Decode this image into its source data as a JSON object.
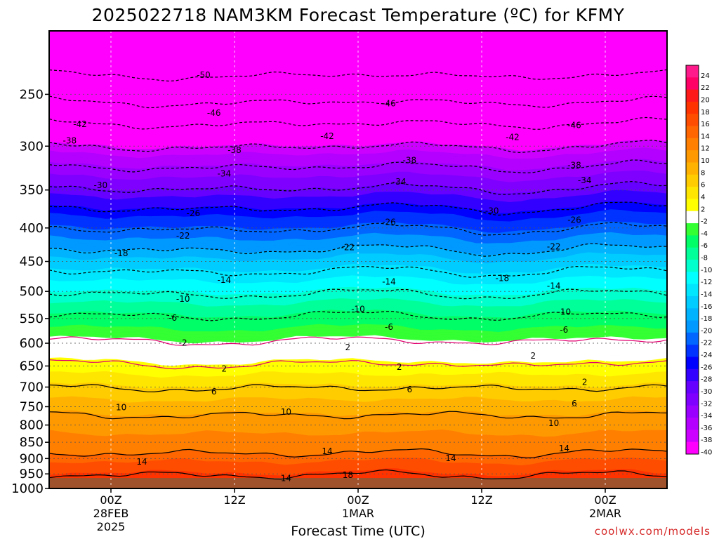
{
  "chart_data": {
    "type": "heatmap",
    "title": "2025022718 NAM3KM Forecast Temperature (ºC) for KFMY",
    "xlabel": "Forecast Time (UTC)",
    "ylabel": "",
    "y_scale": "log",
    "y_reversed": true,
    "ylim": [
      1000,
      200
    ],
    "y_ticks": [
      250,
      300,
      350,
      400,
      450,
      500,
      550,
      600,
      650,
      700,
      750,
      800,
      850,
      900,
      950,
      1000
    ],
    "x_ticks": [
      {
        "hours": 6,
        "label1": "00Z",
        "label2": "28FEB",
        "label3": "2025"
      },
      {
        "hours": 18,
        "label1": "12Z",
        "label2": "",
        "label3": ""
      },
      {
        "hours": 30,
        "label1": "00Z",
        "label2": "1MAR",
        "label3": ""
      },
      {
        "hours": 42,
        "label1": "12Z",
        "label2": "",
        "label3": ""
      },
      {
        "hours": 54,
        "label1": "00Z",
        "label2": "2MAR",
        "label3": ""
      }
    ],
    "xlim_hours": [
      0,
      60
    ],
    "grid": true,
    "colorbar": {
      "position": "right",
      "levels": [
        24,
        22,
        20,
        18,
        16,
        14,
        12,
        10,
        8,
        6,
        4,
        2,
        -2,
        -4,
        -6,
        -8,
        -10,
        -12,
        -14,
        -16,
        -18,
        -20,
        -22,
        -24,
        -26,
        -28,
        -30,
        -32,
        -34,
        -36,
        -38,
        -40
      ],
      "colors": [
        "#ff1a8c",
        "#ff0066",
        "#ff1a1a",
        "#ff3300",
        "#ff4d00",
        "#ff6600",
        "#ff8000",
        "#ff9900",
        "#ffb300",
        "#ffcc00",
        "#ffe600",
        "#ffff00",
        "#ffffff",
        "#33ff33",
        "#00ff66",
        "#00ff99",
        "#00ffcc",
        "#00ffff",
        "#00e6ff",
        "#00ccff",
        "#00b3ff",
        "#0099ff",
        "#0066ff",
        "#0033ff",
        "#0000ff",
        "#3300ff",
        "#6600ff",
        "#8000ff",
        "#9900ff",
        "#b300ff",
        "#cc00ff",
        "#ff00ff"
      ]
    },
    "isotherms": [
      {
        "temp": -50,
        "p": 232
      },
      {
        "temp": -46,
        "p": 255
      },
      {
        "temp": -42,
        "p": 275
      },
      {
        "temp": -38,
        "p": 298
      },
      {
        "temp": -34,
        "p": 320
      },
      {
        "temp": -30,
        "p": 345
      },
      {
        "temp": -26,
        "p": 370
      },
      {
        "temp": -22,
        "p": 398
      },
      {
        "temp": -18,
        "p": 428
      },
      {
        "temp": -14,
        "p": 462
      },
      {
        "temp": -10,
        "p": 500
      },
      {
        "temp": -6,
        "p": 540
      },
      {
        "temp": -2,
        "p": 590
      },
      {
        "temp": 2,
        "p": 640
      },
      {
        "temp": 6,
        "p": 700
      },
      {
        "temp": 10,
        "p": 770
      },
      {
        "temp": 14,
        "p": 880
      },
      {
        "temp": 18,
        "p": 950
      }
    ],
    "contour_labels": [
      {
        "text": "-50",
        "x_hours": 15,
        "p": 232
      },
      {
        "text": "-46",
        "x_hours": 16,
        "p": 265
      },
      {
        "text": "-46",
        "x_hours": 33,
        "p": 258
      },
      {
        "text": "-46",
        "x_hours": 51,
        "p": 278
      },
      {
        "text": "-42",
        "x_hours": 3,
        "p": 277
      },
      {
        "text": "-42",
        "x_hours": 27,
        "p": 289
      },
      {
        "text": "-42",
        "x_hours": 45,
        "p": 288
      },
      {
        "text": "-38",
        "x_hours": 2,
        "p": 294
      },
      {
        "text": "-38",
        "x_hours": 18,
        "p": 302
      },
      {
        "text": "-38",
        "x_hours": 35,
        "p": 315
      },
      {
        "text": "-38",
        "x_hours": 51,
        "p": 320
      },
      {
        "text": "-34",
        "x_hours": 17,
        "p": 328
      },
      {
        "text": "-34",
        "x_hours": 34,
        "p": 340
      },
      {
        "text": "-34",
        "x_hours": 52,
        "p": 338
      },
      {
        "text": "-30",
        "x_hours": 5,
        "p": 343
      },
      {
        "text": "-30",
        "x_hours": 43,
        "p": 373
      },
      {
        "text": "-26",
        "x_hours": 14,
        "p": 377
      },
      {
        "text": "-26",
        "x_hours": 33,
        "p": 392
      },
      {
        "text": "-26",
        "x_hours": 51,
        "p": 388
      },
      {
        "text": "-22",
        "x_hours": 13,
        "p": 408
      },
      {
        "text": "-22",
        "x_hours": 29,
        "p": 428
      },
      {
        "text": "-22",
        "x_hours": 49,
        "p": 425
      },
      {
        "text": "-18",
        "x_hours": 7,
        "p": 435
      },
      {
        "text": "-18",
        "x_hours": 44,
        "p": 473
      },
      {
        "text": "-14",
        "x_hours": 17,
        "p": 477
      },
      {
        "text": "-14",
        "x_hours": 33,
        "p": 483
      },
      {
        "text": "-14",
        "x_hours": 49,
        "p": 488
      },
      {
        "text": "-10",
        "x_hours": 13,
        "p": 510
      },
      {
        "text": "-10",
        "x_hours": 30,
        "p": 532
      },
      {
        "text": "-10",
        "x_hours": 50,
        "p": 535
      },
      {
        "text": "-6",
        "x_hours": 12,
        "p": 545
      },
      {
        "text": "-6",
        "x_hours": 33,
        "p": 567
      },
      {
        "text": "-6",
        "x_hours": 50,
        "p": 570
      },
      {
        "text": "-2",
        "x_hours": 13,
        "p": 595
      },
      {
        "text": "2",
        "x_hours": 29,
        "p": 608
      },
      {
        "text": "2",
        "x_hours": 47,
        "p": 622
      },
      {
        "text": "2",
        "x_hours": 17,
        "p": 652
      },
      {
        "text": "2",
        "x_hours": 34,
        "p": 652
      },
      {
        "text": "2",
        "x_hours": 52,
        "p": 687
      },
      {
        "text": "6",
        "x_hours": 16,
        "p": 706
      },
      {
        "text": "6",
        "x_hours": 35,
        "p": 705
      },
      {
        "text": "6",
        "x_hours": 51,
        "p": 740
      },
      {
        "text": "10",
        "x_hours": 7,
        "p": 748
      },
      {
        "text": "10",
        "x_hours": 23,
        "p": 760
      },
      {
        "text": "10",
        "x_hours": 49,
        "p": 790
      },
      {
        "text": "14",
        "x_hours": 27,
        "p": 875
      },
      {
        "text": "14",
        "x_hours": 39,
        "p": 895
      },
      {
        "text": "14",
        "x_hours": 50,
        "p": 865
      },
      {
        "text": "14",
        "x_hours": 9,
        "p": 905
      },
      {
        "text": "14",
        "x_hours": 23,
        "p": 960
      },
      {
        "text": "18",
        "x_hours": 29,
        "p": 953
      }
    ]
  },
  "credit": "coolwx.com/models"
}
